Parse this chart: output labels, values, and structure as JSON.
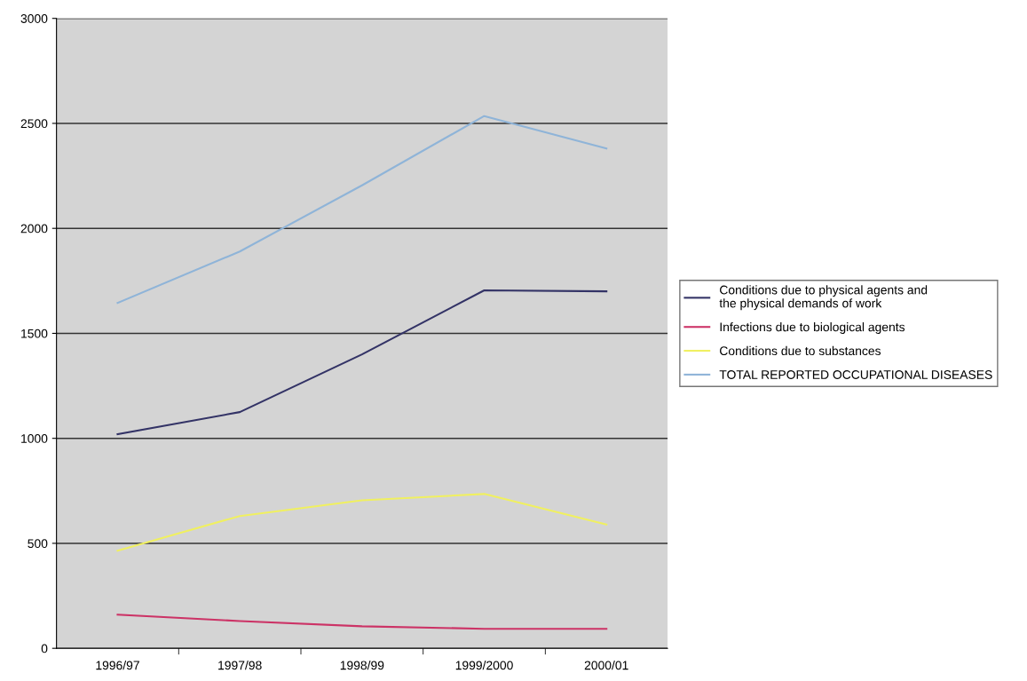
{
  "chart_data": {
    "type": "line",
    "categories": [
      "1996/97",
      "1997/98",
      "1998/99",
      "1999/2000",
      "2000/01"
    ],
    "series": [
      {
        "name": "Conditions due to physical agents and the physical demands of work",
        "color": "#333366",
        "values": [
          1020,
          1125,
          1400,
          1705,
          1700
        ]
      },
      {
        "name": "Infections due to biological agents",
        "color": "#cc3366",
        "values": [
          160,
          130,
          105,
          93,
          93
        ]
      },
      {
        "name": "Conditions due to substances",
        "color": "#f0f060",
        "values": [
          465,
          630,
          705,
          735,
          590
        ]
      },
      {
        "name": "TOTAL REPORTED OCCUPATIONAL DISEASES",
        "color": "#8fb4d8",
        "values": [
          1645,
          1890,
          2205,
          2535,
          2380
        ]
      }
    ],
    "ylim": [
      0,
      3000
    ],
    "yticks": [
      0,
      500,
      1000,
      1500,
      2000,
      2500,
      3000
    ],
    "grid": "y",
    "legend": "right",
    "marker": "none",
    "line_style": "solid"
  }
}
